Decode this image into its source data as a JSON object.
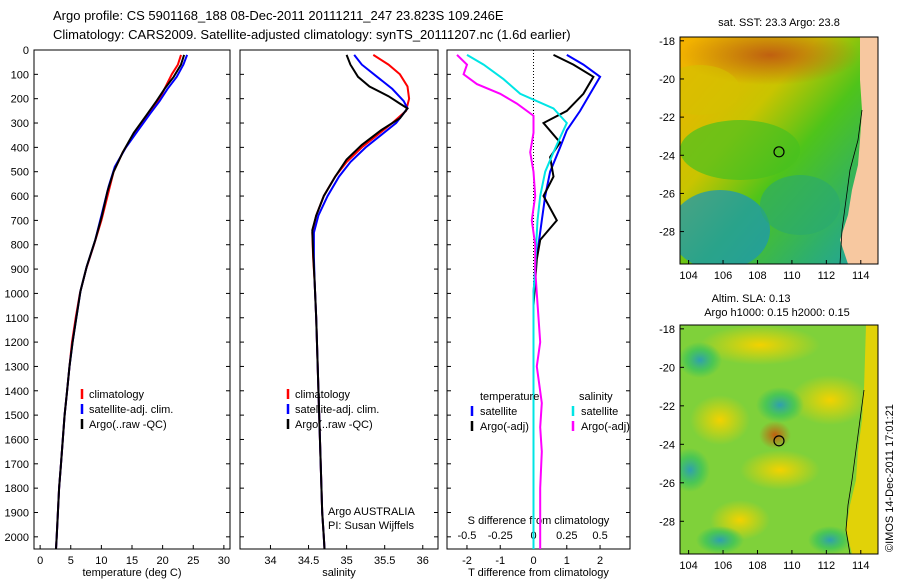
{
  "header": {
    "line1": "Argo profile: CS 5901168_188 08-Dec-2011 20111211_247 23.823S 109.246E",
    "line2": "Climatology: CARS2009. Satellite-adjusted climatology: synTS_20111207.nc (1.6d earlier)"
  },
  "colors": {
    "climatology": "#ff0000",
    "satellite": "#0000ff",
    "argo": "#000000",
    "sat_salinity": "#00ffff",
    "argo_salinity": "#ff00ff"
  },
  "chart_data": [
    {
      "type": "line",
      "id": "temperature",
      "xlabel": "temperature (deg C)",
      "xlim": [
        -1,
        31
      ],
      "xticks": [
        0,
        5,
        10,
        15,
        20,
        25,
        30
      ],
      "ylim": [
        0,
        2050
      ],
      "yticks": [
        0,
        100,
        200,
        300,
        400,
        500,
        600,
        700,
        800,
        900,
        1000,
        1100,
        1200,
        1300,
        1400,
        1500,
        1600,
        1700,
        1800,
        1900,
        2000
      ],
      "legend": [
        "climatology",
        "satellite-adj. clim.",
        "Argo(..raw -QC)"
      ],
      "series": [
        {
          "name": "climatology",
          "color": "red",
          "points": [
            [
              23.0,
              20
            ],
            [
              22.5,
              60
            ],
            [
              21.5,
              100
            ],
            [
              20.5,
              150
            ],
            [
              19.5,
              200
            ],
            [
              17.5,
              270
            ],
            [
              15.5,
              340
            ],
            [
              13.5,
              420
            ],
            [
              12.0,
              500
            ],
            [
              11.0,
              600
            ],
            [
              10.0,
              700
            ],
            [
              8.8,
              800
            ],
            [
              7.5,
              900
            ],
            [
              6.5,
              1000
            ],
            [
              5.8,
              1100
            ],
            [
              5.2,
              1200
            ],
            [
              4.8,
              1300
            ],
            [
              4.4,
              1400
            ],
            [
              4.0,
              1500
            ],
            [
              3.7,
              1600
            ],
            [
              3.4,
              1700
            ],
            [
              3.1,
              1800
            ],
            [
              2.9,
              1900
            ],
            [
              2.7,
              2000
            ],
            [
              2.6,
              2050
            ]
          ]
        },
        {
          "name": "satellite-adj. clim.",
          "color": "blue",
          "points": [
            [
              24.0,
              20
            ],
            [
              23.4,
              60
            ],
            [
              22.3,
              110
            ],
            [
              20.8,
              160
            ],
            [
              19.5,
              210
            ],
            [
              18.0,
              260
            ],
            [
              16.0,
              330
            ],
            [
              14.0,
              400
            ],
            [
              12.2,
              480
            ],
            [
              11.2,
              560
            ],
            [
              10.2,
              660
            ],
            [
              9.0,
              780
            ],
            [
              7.6,
              890
            ],
            [
              6.6,
              990
            ],
            [
              5.9,
              1100
            ],
            [
              5.3,
              1200
            ],
            [
              4.8,
              1300
            ],
            [
              4.4,
              1400
            ],
            [
              4.0,
              1500
            ],
            [
              3.7,
              1600
            ],
            [
              3.4,
              1700
            ],
            [
              3.1,
              1800
            ],
            [
              2.9,
              1900
            ],
            [
              2.7,
              2000
            ],
            [
              2.6,
              2050
            ]
          ]
        },
        {
          "name": "Argo(..raw -QC)",
          "color": "black",
          "points": [
            [
              23.5,
              20
            ],
            [
              23.0,
              60
            ],
            [
              21.8,
              110
            ],
            [
              20.3,
              160
            ],
            [
              19.0,
              210
            ],
            [
              17.3,
              270
            ],
            [
              15.3,
              340
            ],
            [
              13.5,
              420
            ],
            [
              12.0,
              500
            ],
            [
              11.0,
              580
            ],
            [
              10.1,
              680
            ],
            [
              9.0,
              780
            ],
            [
              7.6,
              890
            ],
            [
              6.6,
              990
            ],
            [
              5.9,
              1100
            ],
            [
              5.3,
              1200
            ],
            [
              4.8,
              1300
            ],
            [
              4.4,
              1400
            ],
            [
              4.0,
              1500
            ],
            [
              3.7,
              1600
            ],
            [
              3.4,
              1700
            ],
            [
              3.1,
              1800
            ],
            [
              2.9,
              1900
            ],
            [
              2.7,
              2000
            ],
            [
              2.6,
              2050
            ]
          ]
        }
      ]
    },
    {
      "type": "line",
      "id": "salinity",
      "xlabel": "salinity",
      "xlim": [
        33.6,
        36.2
      ],
      "xticks": [
        34,
        34.5,
        35,
        35.5,
        36
      ],
      "ylim": [
        0,
        2050
      ],
      "legend": [
        "climatology",
        "satellite-adj. clim.",
        "Argo(..raw -QC)"
      ],
      "annotation": [
        "Argo AUSTRALIA",
        "PI: Susan Wijffels"
      ],
      "series": [
        {
          "name": "climatology",
          "color": "red",
          "points": [
            [
              35.35,
              20
            ],
            [
              35.55,
              60
            ],
            [
              35.7,
              100
            ],
            [
              35.8,
              150
            ],
            [
              35.82,
              200
            ],
            [
              35.78,
              250
            ],
            [
              35.6,
              300
            ],
            [
              35.4,
              350
            ],
            [
              35.2,
              400
            ],
            [
              35.0,
              460
            ],
            [
              34.85,
              520
            ],
            [
              34.7,
              600
            ],
            [
              34.6,
              680
            ],
            [
              34.55,
              750
            ],
            [
              34.56,
              850
            ],
            [
              34.58,
              950
            ],
            [
              34.6,
              1100
            ],
            [
              34.62,
              1300
            ],
            [
              34.64,
              1500
            ],
            [
              34.66,
              1700
            ],
            [
              34.68,
              1900
            ],
            [
              34.7,
              2000
            ],
            [
              34.71,
              2050
            ]
          ]
        },
        {
          "name": "satellite-adj. clim.",
          "color": "blue",
          "points": [
            [
              35.1,
              20
            ],
            [
              35.2,
              60
            ],
            [
              35.4,
              110
            ],
            [
              35.6,
              160
            ],
            [
              35.75,
              210
            ],
            [
              35.8,
              240
            ],
            [
              35.65,
              300
            ],
            [
              35.45,
              350
            ],
            [
              35.25,
              400
            ],
            [
              35.05,
              460
            ],
            [
              34.9,
              520
            ],
            [
              34.75,
              600
            ],
            [
              34.63,
              680
            ],
            [
              34.57,
              750
            ],
            [
              34.57,
              850
            ],
            [
              34.58,
              950
            ],
            [
              34.6,
              1100
            ],
            [
              34.62,
              1300
            ],
            [
              34.64,
              1500
            ],
            [
              34.66,
              1700
            ],
            [
              34.68,
              1900
            ],
            [
              34.7,
              2000
            ],
            [
              34.71,
              2050
            ]
          ]
        },
        {
          "name": "Argo(..raw -QC)",
          "color": "black",
          "points": [
            [
              35.0,
              20
            ],
            [
              35.05,
              60
            ],
            [
              35.15,
              110
            ],
            [
              35.3,
              150
            ],
            [
              35.55,
              190
            ],
            [
              35.7,
              220
            ],
            [
              35.8,
              240
            ],
            [
              35.7,
              280
            ],
            [
              35.45,
              330
            ],
            [
              35.2,
              390
            ],
            [
              35.0,
              450
            ],
            [
              34.85,
              520
            ],
            [
              34.7,
              600
            ],
            [
              34.6,
              680
            ],
            [
              34.55,
              740
            ],
            [
              34.56,
              830
            ],
            [
              34.58,
              950
            ],
            [
              34.6,
              1100
            ],
            [
              34.62,
              1300
            ],
            [
              34.64,
              1500
            ],
            [
              34.66,
              1700
            ],
            [
              34.68,
              1900
            ],
            [
              34.7,
              2000
            ],
            [
              34.71,
              2050
            ]
          ]
        }
      ]
    },
    {
      "type": "line",
      "id": "difference",
      "xlabel": "T difference from climatology",
      "xlim": [
        -2.6,
        2.9
      ],
      "xticks": [
        -2,
        -1,
        0,
        1,
        2
      ],
      "top_xlabel": "S difference from climatology",
      "top_xticks": [
        [
          "-0.5",
          -2
        ],
        [
          "-0.25",
          -1
        ],
        [
          "0",
          0
        ],
        [
          "0.25",
          1
        ],
        [
          "0.5",
          2
        ]
      ],
      "ylim": [
        0,
        2050
      ],
      "legend_temperature": {
        "title": "temperature",
        "items": [
          "satellite",
          "Argo(-adj)"
        ]
      },
      "legend_salinity": {
        "title": "salinity",
        "items": [
          "satellite",
          "Argo(-adj)"
        ]
      },
      "series": [
        {
          "name": "T satellite",
          "color": "blue",
          "points": [
            [
              1.0,
              20
            ],
            [
              1.5,
              60
            ],
            [
              2.0,
              110
            ],
            [
              1.7,
              180
            ],
            [
              1.4,
              250
            ],
            [
              1.0,
              330
            ],
            [
              0.8,
              400
            ],
            [
              0.5,
              500
            ],
            [
              0.35,
              600
            ],
            [
              0.25,
              700
            ],
            [
              0.15,
              800
            ],
            [
              0.05,
              900
            ],
            [
              0.0,
              1000
            ],
            [
              0.0,
              1500
            ],
            [
              0.0,
              2050
            ]
          ]
        },
        {
          "name": "T Argo(-adj)",
          "color": "black",
          "points": [
            [
              0.6,
              20
            ],
            [
              1.2,
              60
            ],
            [
              1.8,
              110
            ],
            [
              1.5,
              180
            ],
            [
              1.0,
              250
            ],
            [
              0.3,
              300
            ],
            [
              0.8,
              380
            ],
            [
              0.5,
              440
            ],
            [
              0.6,
              520
            ],
            [
              0.3,
              600
            ],
            [
              0.7,
              700
            ],
            [
              0.2,
              780
            ],
            [
              0.1,
              860
            ],
            [
              0.05,
              950
            ],
            [
              0.0,
              1050
            ],
            [
              0.0,
              1600
            ],
            [
              0.0,
              2050
            ]
          ]
        },
        {
          "name": "S satellite",
          "color": "cyan",
          "points": [
            [
              -2.0,
              20
            ],
            [
              -1.5,
              60
            ],
            [
              -0.9,
              120
            ],
            [
              -0.4,
              180
            ],
            [
              0.6,
              240
            ],
            [
              1.0,
              300
            ],
            [
              0.8,
              360
            ],
            [
              0.6,
              420
            ],
            [
              0.35,
              500
            ],
            [
              0.2,
              600
            ],
            [
              0.12,
              700
            ],
            [
              0.08,
              800
            ],
            [
              0.05,
              900
            ],
            [
              0.0,
              1000
            ],
            [
              0.0,
              1500
            ],
            [
              0.0,
              2050
            ]
          ]
        },
        {
          "name": "S Argo(-adj)",
          "color": "magenta",
          "points": [
            [
              -2.3,
              20
            ],
            [
              -2.0,
              60
            ],
            [
              -2.1,
              100
            ],
            [
              -1.7,
              140
            ],
            [
              -1.0,
              180
            ],
            [
              -0.5,
              220
            ],
            [
              0.0,
              270
            ],
            [
              0.0,
              340
            ],
            [
              -0.1,
              420
            ],
            [
              0.0,
              500
            ],
            [
              0.05,
              600
            ],
            [
              -0.05,
              700
            ],
            [
              0.05,
              800
            ],
            [
              0.05,
              900
            ],
            [
              0.1,
              1000
            ],
            [
              0.15,
              1100
            ],
            [
              0.2,
              1200
            ],
            [
              0.1,
              1300
            ],
            [
              0.25,
              1450
            ],
            [
              0.2,
              1550
            ],
            [
              0.25,
              1650
            ],
            [
              0.2,
              1800
            ],
            [
              0.2,
              1950
            ],
            [
              0.2,
              2050
            ]
          ]
        }
      ]
    },
    {
      "type": "heatmap",
      "id": "sst_map",
      "title": "sat. SST: 23.3 Argo: 23.8",
      "xlim": [
        103.5,
        115
      ],
      "xticks": [
        104,
        106,
        108,
        110,
        112,
        114
      ],
      "ylim": [
        -29.7,
        -17.8
      ],
      "yticks": [
        -28,
        -26,
        -24,
        -22,
        -20,
        -18
      ],
      "argo_position": [
        109.25,
        -23.82
      ]
    },
    {
      "type": "heatmap",
      "id": "sla_map",
      "title": "Altim. SLA: 0.13",
      "subtitle": "Argo h1000: 0.15 h2000: 0.15",
      "xlim": [
        103.5,
        115
      ],
      "xticks": [
        104,
        106,
        108,
        110,
        112,
        114
      ],
      "ylim": [
        -29.7,
        -17.8
      ],
      "yticks": [
        -28,
        -26,
        -24,
        -22,
        -20,
        -18
      ],
      "argo_position": [
        109.25,
        -23.82
      ]
    }
  ],
  "footer": {
    "credit": "©IMOS 14-Dec-2011 17:01:21"
  }
}
